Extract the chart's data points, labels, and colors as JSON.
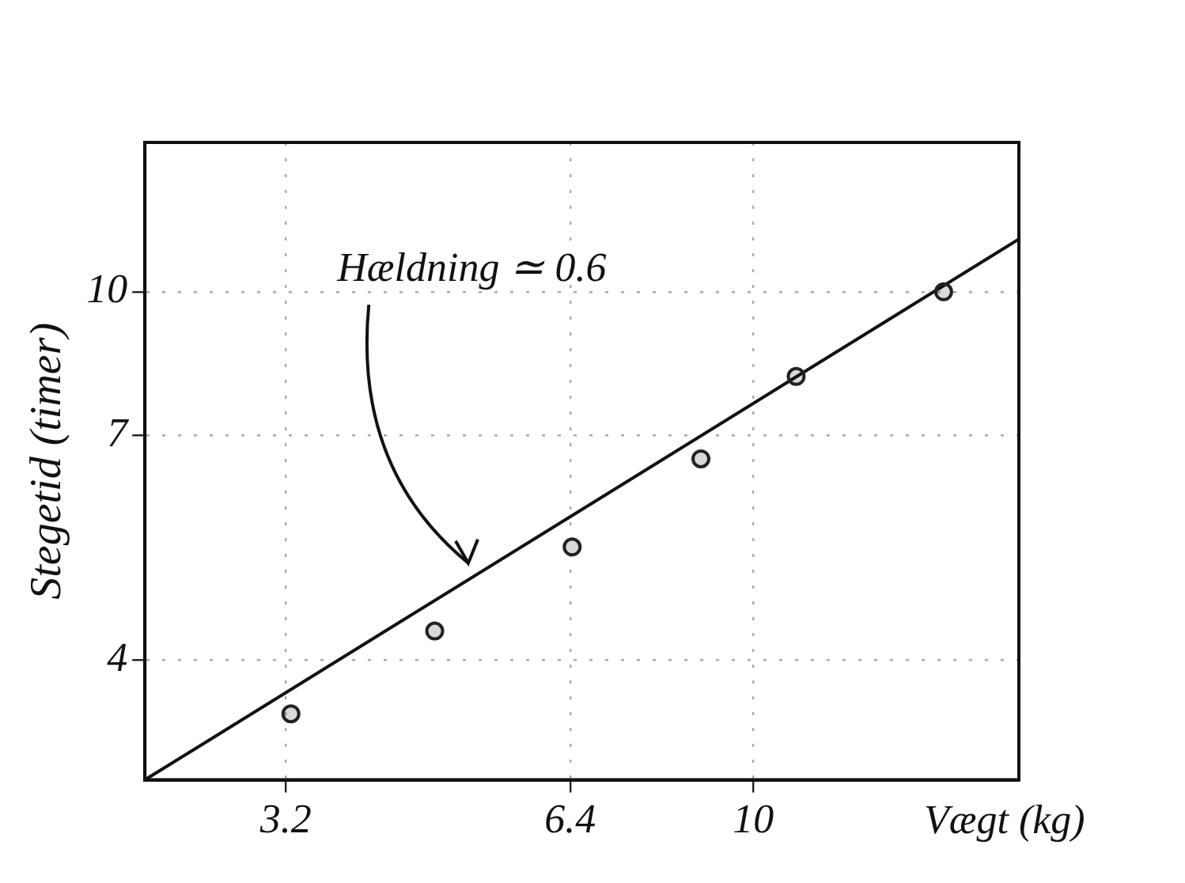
{
  "chart_data": {
    "type": "scatter",
    "xlabel": "Vægt (kg)",
    "ylabel": "Stegetid (timer)",
    "log": "xy",
    "xlim": [
      2.27,
      19.1
    ],
    "ylim": [
      2.97,
      14.5
    ],
    "xticks": [
      3.2,
      6.4,
      10
    ],
    "yticks": [
      4,
      7,
      10
    ],
    "grid": true,
    "marker": "circle",
    "series": [
      {
        "color": "#222222",
        "x": [
          3.24,
          4.6,
          6.43,
          8.8,
          11.1,
          15.9
        ],
        "values": [
          3.5,
          4.3,
          5.3,
          6.6,
          8.1,
          10
        ]
      },
      {
        "type": "line",
        "color": "#111111",
        "x": [
          2.27,
          19.1
        ],
        "values": [
          2.97,
          11.4
        ],
        "marker": "none"
      }
    ],
    "annotations": [
      "Hældning ≃ 0.6"
    ],
    "legend": false
  }
}
